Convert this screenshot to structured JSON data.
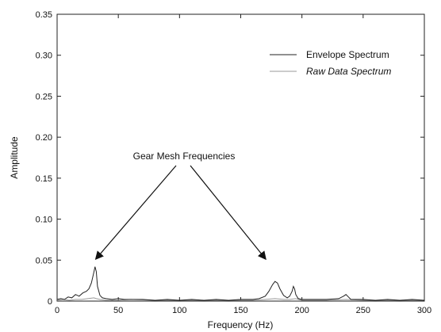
{
  "chart_data": {
    "type": "line",
    "title": "",
    "xlabel": "Frequency (Hz)",
    "ylabel": "Amplitude",
    "xlim": [
      0,
      300
    ],
    "ylim": [
      0,
      0.35
    ],
    "xticks": [
      0,
      50,
      100,
      150,
      200,
      250,
      300
    ],
    "yticks": [
      0,
      0.05,
      0.1,
      0.15,
      0.2,
      0.25,
      0.3,
      0.35
    ],
    "xtick_labels": [
      "0",
      "50",
      "100",
      "150",
      "200",
      "250",
      "300"
    ],
    "ytick_labels": [
      "0",
      "0.05",
      "0.10",
      "0.15",
      "0.20",
      "0.25",
      "0.30",
      "0.35"
    ],
    "grid": false,
    "legend_position": "top-right",
    "series": [
      {
        "name": "Envelope Spectrum",
        "color": "#222222",
        "x": [
          0,
          3,
          6,
          9,
          12,
          15,
          18,
          21,
          24,
          26,
          28,
          30,
          31,
          32,
          33,
          35,
          37,
          40,
          45,
          50,
          55,
          60,
          70,
          80,
          90,
          100,
          110,
          120,
          130,
          140,
          150,
          160,
          165,
          170,
          173,
          176,
          178,
          180,
          182,
          185,
          188,
          190,
          192,
          193,
          194,
          195,
          197,
          200,
          210,
          220,
          230,
          234,
          236,
          238,
          240,
          250,
          260,
          270,
          280,
          290,
          300
        ],
        "y": [
          0.002,
          0.003,
          0.002,
          0.005,
          0.004,
          0.008,
          0.006,
          0.01,
          0.012,
          0.015,
          0.022,
          0.035,
          0.042,
          0.036,
          0.018,
          0.007,
          0.004,
          0.003,
          0.002,
          0.003,
          0.002,
          0.002,
          0.002,
          0.001,
          0.002,
          0.001,
          0.002,
          0.001,
          0.002,
          0.001,
          0.002,
          0.002,
          0.003,
          0.006,
          0.012,
          0.02,
          0.024,
          0.022,
          0.015,
          0.007,
          0.004,
          0.006,
          0.012,
          0.018,
          0.015,
          0.008,
          0.003,
          0.002,
          0.002,
          0.002,
          0.003,
          0.006,
          0.008,
          0.005,
          0.002,
          0.002,
          0.001,
          0.002,
          0.001,
          0.002,
          0.001
        ]
      },
      {
        "name": "Raw Data Spectrum",
        "color": "#9a9a9a",
        "x": [
          0,
          5,
          10,
          15,
          20,
          25,
          30,
          32,
          35,
          40,
          50,
          60,
          80,
          100,
          120,
          140,
          160,
          170,
          178,
          185,
          190,
          195,
          200,
          220,
          236,
          250,
          270,
          300
        ],
        "y": [
          0.001,
          0.002,
          0.001,
          0.002,
          0.002,
          0.003,
          0.004,
          0.003,
          0.002,
          0.001,
          0.001,
          0.002,
          0.001,
          0.001,
          0.001,
          0.001,
          0.001,
          0.002,
          0.003,
          0.002,
          0.002,
          0.003,
          0.001,
          0.001,
          0.002,
          0.001,
          0.001,
          0.001
        ]
      }
    ],
    "annotations": [
      {
        "text": "Gear Mesh Frequencies",
        "arrows_to": [
          [
            32,
            0.052
          ],
          [
            170,
            0.052
          ]
        ]
      }
    ]
  }
}
